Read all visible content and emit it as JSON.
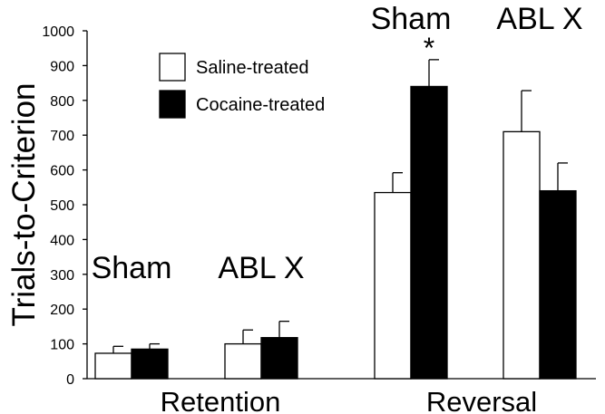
{
  "chart_data": {
    "type": "bar",
    "ylabel": "Trials-to-Criterion",
    "ylim": [
      0,
      1000
    ],
    "yticks": [
      0,
      100,
      200,
      300,
      400,
      500,
      600,
      700,
      800,
      900,
      1000
    ],
    "error_bars": true,
    "legend": {
      "placement": "top-left",
      "entries": [
        "Saline-treated",
        "Cocaine-treated"
      ]
    },
    "series_colors": {
      "Saline-treated": "#ffffff",
      "Cocaine-treated": "#000000"
    },
    "phases": [
      {
        "label": "Retention",
        "groups": [
          {
            "label": "Sham",
            "saline": 73,
            "saline_err": 20,
            "cocaine": 85,
            "cocaine_err": 15
          },
          {
            "label": "ABL X",
            "saline": 100,
            "saline_err": 40,
            "cocaine": 118,
            "cocaine_err": 47
          }
        ]
      },
      {
        "label": "Reversal",
        "groups": [
          {
            "label": "Sham",
            "saline": 535,
            "saline_err": 57,
            "cocaine": 840,
            "cocaine_err": 77,
            "annotation": "*"
          },
          {
            "label": "ABL X",
            "saline": 710,
            "saline_err": 118,
            "cocaine": 540,
            "cocaine_err": 80
          }
        ]
      }
    ]
  }
}
